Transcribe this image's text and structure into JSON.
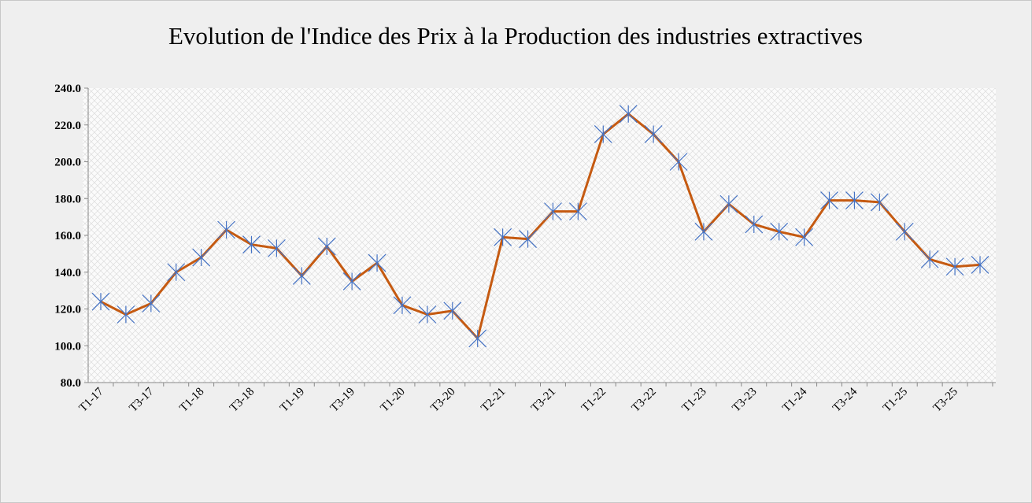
{
  "chart_data": {
    "type": "line",
    "title": "Evolution de l'Indice des Prix à la Production  des industries extractives",
    "categories": [
      "T1-17",
      null,
      "T3-17",
      null,
      "T1-18",
      null,
      "T3-18",
      null,
      "T1-19",
      null,
      "T3-19",
      null,
      "T1-20",
      null,
      "T3-20",
      null,
      "T2-21",
      null,
      "T3-21",
      null,
      "T1-22",
      null,
      "T3-22",
      null,
      "T1-23",
      null,
      "T3-23",
      null,
      "T1-24",
      null,
      "T3-24",
      null,
      "T1-25",
      null,
      "T3-25",
      null
    ],
    "series": [
      {
        "color": "#c55a11",
        "marker_color": "#4472c4",
        "values": [
          124,
          117,
          123,
          140,
          148,
          163,
          155,
          153,
          138,
          154,
          135,
          145,
          122,
          117,
          119,
          104,
          159,
          158,
          173,
          173,
          215,
          226,
          215,
          200,
          162,
          177,
          166,
          162,
          159,
          179,
          179,
          178,
          162,
          147,
          143,
          144
        ]
      }
    ],
    "ylim": [
      80,
      240
    ],
    "yticks": [
      {
        "value": 80,
        "label": "80.0"
      },
      {
        "value": 100,
        "label": "100.0"
      },
      {
        "value": 120,
        "label": "120.0"
      },
      {
        "value": 140,
        "label": "140.0"
      },
      {
        "value": 160,
        "label": "160.0"
      },
      {
        "value": 180,
        "label": "180.0"
      },
      {
        "value": 200,
        "label": "200.0"
      },
      {
        "value": 220,
        "label": "220.0"
      },
      {
        "value": 240,
        "label": "240.0"
      }
    ]
  }
}
